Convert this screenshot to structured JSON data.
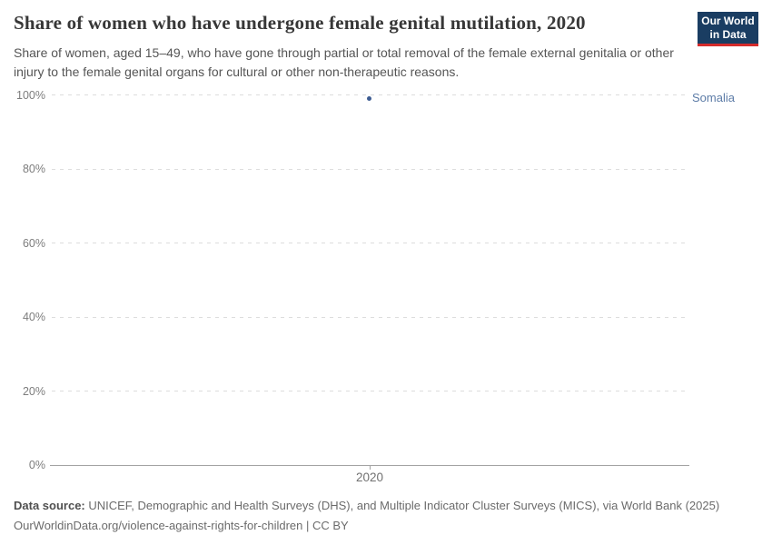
{
  "header": {
    "title": "Share of women who have undergone female genital mutilation, 2020",
    "subtitle": "Share of women, aged 15–49, who have gone through partial or total removal of the female external genitalia or other injury to the female genital organs for cultural or other non-therapeutic reasons.",
    "logo": {
      "line1": "Our World",
      "line2": "in Data",
      "bg_color": "#1a3d62",
      "stripe_color": "#d42b2b"
    }
  },
  "chart_data": {
    "type": "scatter",
    "title": "Share of women who have undergone female genital mutilation, 2020",
    "xlabel": "",
    "ylabel": "",
    "ylim": [
      0,
      100
    ],
    "ytick_values": [
      0,
      20,
      40,
      60,
      80,
      100
    ],
    "ytick_suffix": "%",
    "xticks": [
      2020
    ],
    "grid": true,
    "legend_position": "right-of-point",
    "series": [
      {
        "name": "Somalia",
        "x": 2020,
        "value": 99,
        "point_color": "#3d5c92",
        "label_color": "#5d7ca7"
      }
    ]
  },
  "footer": {
    "source_label": "Data source:",
    "source_text": " UNICEF, Demographic and Health Surveys (DHS), and Multiple Indicator Cluster Surveys (MICS), via World Bank (2025)",
    "license_line": "OurWorldinData.org/violence-against-rights-for-children | CC BY"
  }
}
